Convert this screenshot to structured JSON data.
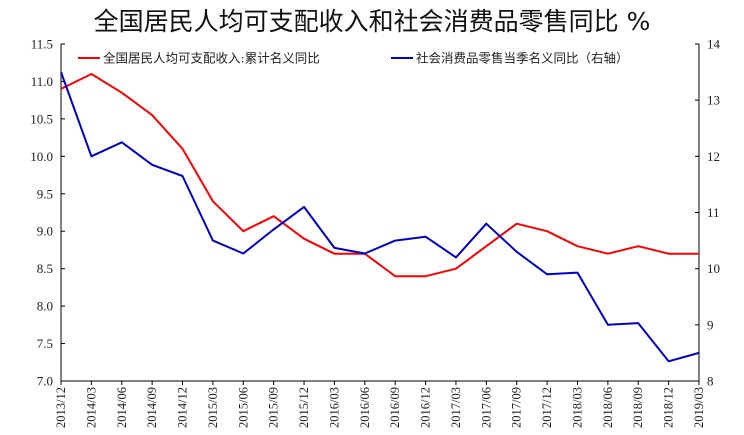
{
  "chart_data": {
    "type": "line",
    "title": "全国居民人均可支配收入和社会消费品零售同比 %",
    "categories": [
      "2013/12",
      "2014/03",
      "2014/06",
      "2014/09",
      "2014/12",
      "2015/03",
      "2015/06",
      "2015/09",
      "2015/12",
      "2016/03",
      "2016/06",
      "2016/09",
      "2016/12",
      "2017/03",
      "2017/06",
      "2017/09",
      "2017/12",
      "2018/03",
      "2018/06",
      "2018/09",
      "2018/12",
      "2019/03"
    ],
    "ylim_left": [
      7.0,
      11.5
    ],
    "yticks_left": [
      "7.0",
      "7.5",
      "8.0",
      "8.5",
      "9.0",
      "9.5",
      "10.0",
      "10.5",
      "11.0",
      "11.5"
    ],
    "ylim_right": [
      8,
      14
    ],
    "yticks_right": [
      "8",
      "9",
      "10",
      "11",
      "12",
      "13",
      "14"
    ],
    "legend_position": "top",
    "grid": false,
    "series": [
      {
        "name": "全国居民人均可支配收入:累计名义同比",
        "axis": "left",
        "color": "#ff0000",
        "values": [
          10.9,
          11.1,
          10.85,
          10.55,
          10.1,
          9.4,
          9.0,
          9.2,
          8.9,
          8.7,
          8.7,
          8.4,
          8.4,
          8.5,
          8.8,
          9.1,
          9.0,
          8.8,
          8.7,
          8.8,
          8.7,
          8.7
        ]
      },
      {
        "name": "社会消费品零售当季名义同比（右轴）",
        "axis": "right",
        "color": "#0000cc",
        "values": [
          13.5,
          12.0,
          12.25,
          11.85,
          11.65,
          10.5,
          10.27,
          10.7,
          11.1,
          10.37,
          10.27,
          10.5,
          10.57,
          10.2,
          10.8,
          10.3,
          9.9,
          9.93,
          9.0,
          9.03,
          8.35,
          8.5
        ]
      }
    ]
  }
}
